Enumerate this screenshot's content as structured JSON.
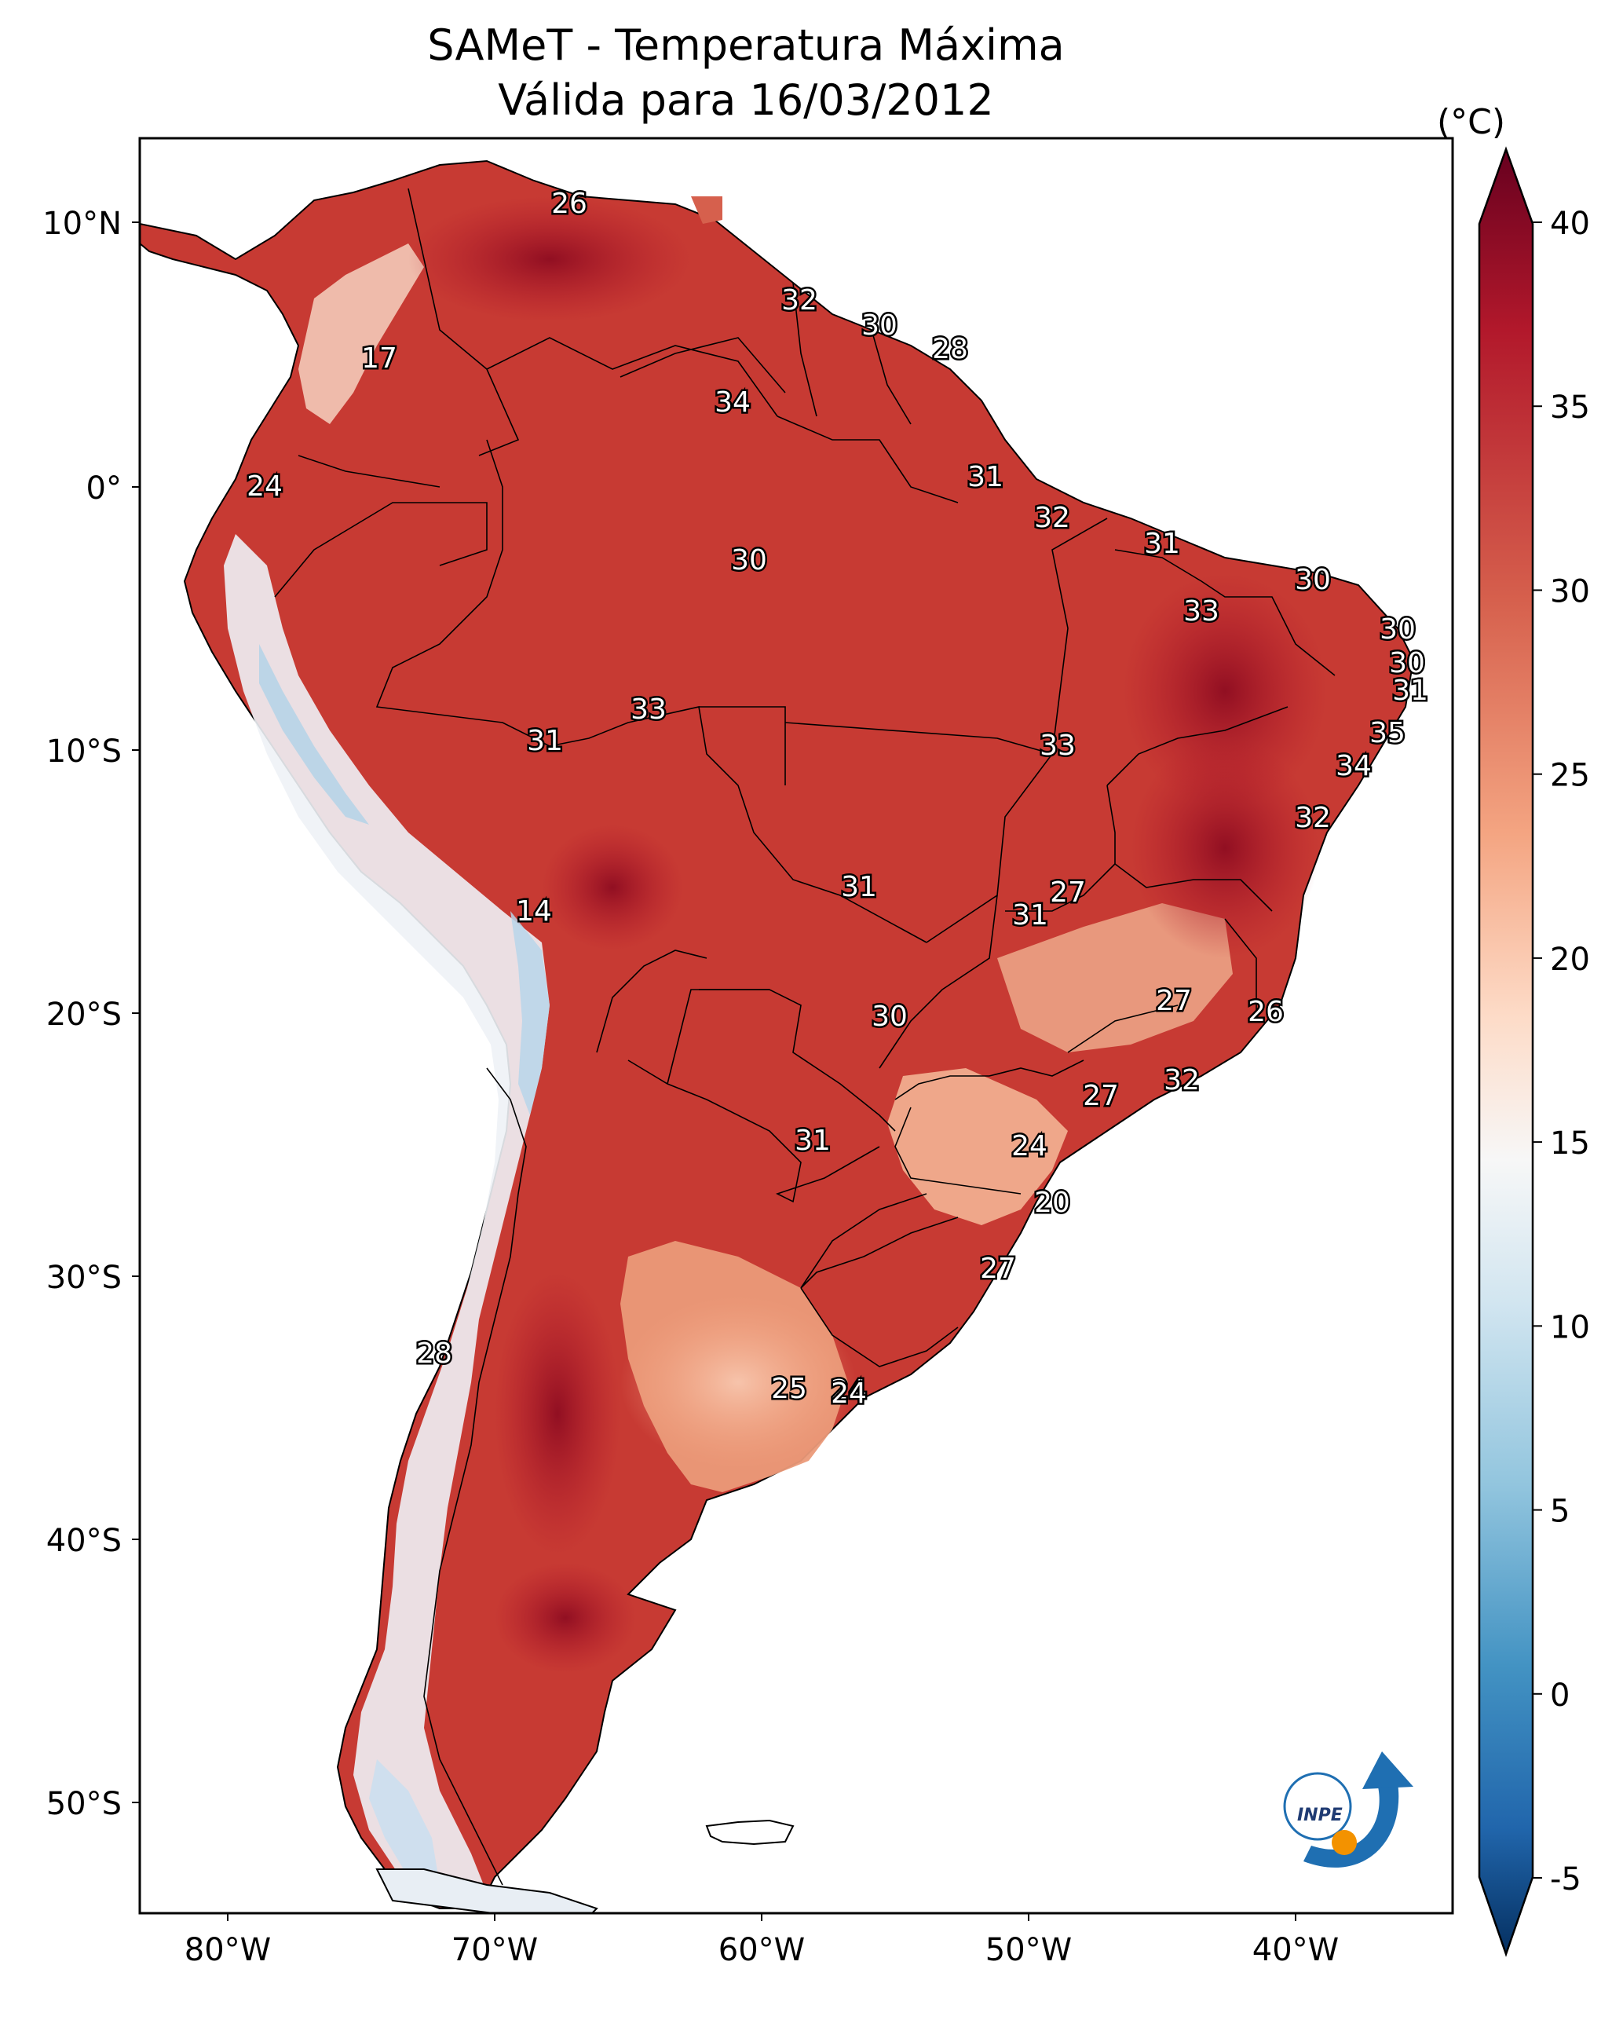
{
  "title": "SAMeT - Temperatura Máxima",
  "subtitle": "Válida para 16/03/2012",
  "colorbar": {
    "unit": "(°C)",
    "min": -5,
    "max": 40,
    "ticks": [
      "40",
      "35",
      "30",
      "25",
      "20",
      "15",
      "10",
      "5",
      "0",
      "-5"
    ],
    "colors": [
      "#67001f",
      "#b2182b",
      "#d6604d",
      "#f4a582",
      "#fddbc7",
      "#f7f7f7",
      "#d1e5f0",
      "#92c5de",
      "#4393c3",
      "#2166ac",
      "#053061"
    ]
  },
  "axes": {
    "lat_labels": [
      "10°N",
      "0°",
      "10°S",
      "20°S",
      "30°S",
      "40°S",
      "50°S"
    ],
    "lon_labels": [
      "80°W",
      "70°W",
      "60°W",
      "50°W",
      "40°W"
    ]
  },
  "logo": {
    "text": "INPE"
  },
  "station_values": [
    "26",
    "17",
    "32",
    "30",
    "28",
    "34",
    "24",
    "31",
    "32",
    "30",
    "31",
    "30",
    "33",
    "30",
    "30",
    "31",
    "33",
    "31",
    "33",
    "35",
    "34",
    "27",
    "31",
    "32",
    "27",
    "31",
    "14",
    "30",
    "26",
    "32",
    "27",
    "24",
    "31",
    "20",
    "27",
    "28",
    "24",
    "25",
    "24"
  ]
}
